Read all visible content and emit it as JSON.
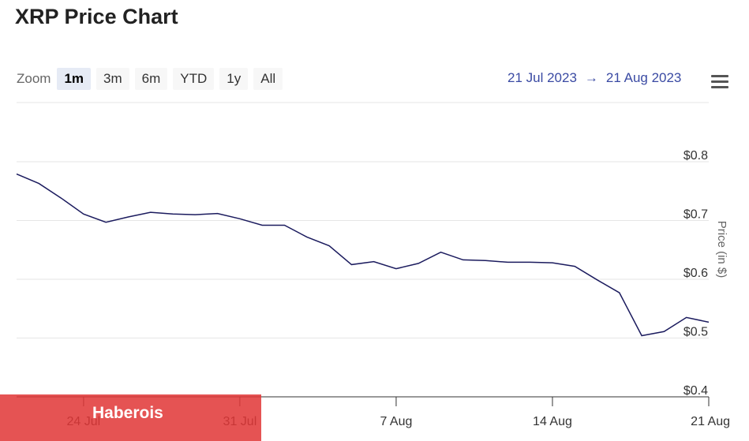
{
  "title": "XRP Price Chart",
  "zoom": {
    "label": "Zoom",
    "buttons": [
      "1m",
      "3m",
      "6m",
      "YTD",
      "1y",
      "All"
    ],
    "selected": "1m"
  },
  "range": {
    "from": "21 Jul 2023",
    "arrow": "→",
    "to": "21 Aug 2023"
  },
  "menu_icon": "hamburger-menu-icon",
  "watermark": {
    "text": "Haberois",
    "color": "#e13737"
  },
  "chart_data": {
    "type": "line",
    "ylabel": "Price (in $)",
    "ylim": [
      0.4,
      0.8
    ],
    "yticks": [
      0.4,
      0.5,
      0.6,
      0.7,
      0.8
    ],
    "ytick_labels": [
      "$0.4",
      "$0.5",
      "$0.6",
      "$0.7",
      "$0.8"
    ],
    "xlim": [
      "2023-07-21",
      "2023-08-21"
    ],
    "xticks": [
      "2023-07-24",
      "2023-07-31",
      "2023-08-07",
      "2023-08-14",
      "2023-08-21"
    ],
    "xtick_labels": [
      "24 Jul",
      "31 Jul",
      "7 Aug",
      "14 Aug",
      "21 Aug"
    ],
    "grid": true,
    "line_color": "#1b1b5e",
    "series": [
      {
        "x": [
          "2023-07-21",
          "2023-07-22",
          "2023-07-23",
          "2023-07-24",
          "2023-07-25",
          "2023-07-26",
          "2023-07-27",
          "2023-07-28",
          "2023-07-29",
          "2023-07-30",
          "2023-07-31",
          "2023-08-01",
          "2023-08-02",
          "2023-08-03",
          "2023-08-04",
          "2023-08-05",
          "2023-08-06",
          "2023-08-07",
          "2023-08-08",
          "2023-08-09",
          "2023-08-10",
          "2023-08-11",
          "2023-08-12",
          "2023-08-13",
          "2023-08-14",
          "2023-08-15",
          "2023-08-16",
          "2023-08-17",
          "2023-08-18",
          "2023-08-19",
          "2023-08-20",
          "2023-08-21"
        ],
        "values": [
          0.779,
          0.763,
          0.738,
          0.711,
          0.697,
          0.706,
          0.714,
          0.711,
          0.71,
          0.712,
          0.703,
          0.692,
          0.692,
          0.672,
          0.657,
          0.625,
          0.63,
          0.618,
          0.627,
          0.646,
          0.633,
          0.632,
          0.629,
          0.629,
          0.628,
          0.622,
          0.599,
          0.577,
          0.504,
          0.511,
          0.535,
          0.527
        ]
      }
    ]
  }
}
